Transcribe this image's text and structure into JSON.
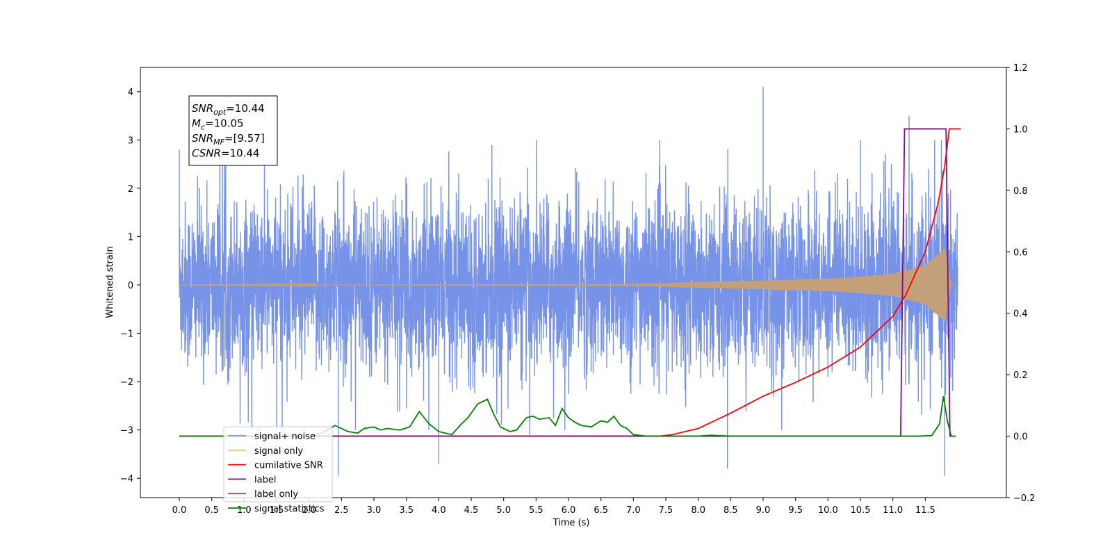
{
  "chart_data": {
    "type": "line",
    "xlabel": "Time (s)",
    "ylabel_left": "Whitened strain",
    "ylabel_right": "",
    "xlim": [
      -0.6,
      12.75
    ],
    "ylim_left": [
      -4.4,
      4.5
    ],
    "ylim_right": [
      -0.2,
      1.2
    ],
    "x_ticks": [
      "0.0",
      "0.5",
      "1.0",
      "1.5",
      "2.0",
      "2.5",
      "3.0",
      "3.5",
      "4.0",
      "4.5",
      "5.0",
      "5.5",
      "6.0",
      "6.5",
      "7.0",
      "7.5",
      "8.0",
      "8.5",
      "9.0",
      "9.5",
      "10.0",
      "10.5",
      "11.0",
      "11.5"
    ],
    "y_ticks_left": [
      "4",
      "3",
      "2",
      "1",
      "0",
      "−1",
      "−2",
      "−3",
      "−4"
    ],
    "y_ticks_right": [
      "1.2",
      "1.0",
      "0.8",
      "0.6",
      "0.4",
      "0.2",
      "0.0",
      "−0.2"
    ],
    "grid": false,
    "legend_position": "lower-left",
    "annotation": {
      "lines": [
        {
          "sym": "SNR",
          "sub": "opt",
          "val": "=10.44"
        },
        {
          "sym": "M",
          "sub": "c",
          "val": "=10.05"
        },
        {
          "sym": "SNR",
          "sub": "MF",
          "val": "=[9.57]"
        },
        {
          "sym": "CSNR",
          "sub": "",
          "val": "=10.44"
        }
      ]
    },
    "series": [
      {
        "name": "signal+ noise",
        "axis": "left",
        "color": "#7793e8",
        "kind": "noise",
        "x_range": [
          0.0,
          12.0
        ],
        "typical_range": [
          -2.2,
          2.4
        ],
        "spikes": [
          [
            0.0,
            2.8
          ],
          [
            9.0,
            4.1
          ],
          [
            11.25,
            3.5
          ],
          [
            10.5,
            3.0
          ],
          [
            4.0,
            -3.7
          ],
          [
            8.45,
            -3.8
          ],
          [
            11.8,
            -3.95
          ],
          [
            2.45,
            -3.95
          ],
          [
            1.5,
            -3.0
          ],
          [
            5.4,
            -3.1
          ]
        ]
      },
      {
        "name": "signal only",
        "axis": "left",
        "color": "#c4a07a",
        "kind": "chirp",
        "x": [
          0.0,
          7.0,
          8.0,
          9.0,
          10.0,
          10.5,
          11.0,
          11.5,
          11.8,
          11.9,
          12.0
        ],
        "envelope": [
          0.0,
          0.02,
          0.06,
          0.09,
          0.13,
          0.17,
          0.23,
          0.4,
          0.75,
          0.0,
          0.0
        ]
      },
      {
        "name": "cumilative SNR",
        "axis": "right",
        "color": "#ff0000",
        "x": [
          0.0,
          7.4,
          7.6,
          8.0,
          8.5,
          9.0,
          9.5,
          10.0,
          10.5,
          11.0,
          11.2,
          11.5,
          11.7,
          11.8,
          11.87,
          11.92,
          12.05
        ],
        "values": [
          0.0,
          0.0,
          0.005,
          0.025,
          0.075,
          0.13,
          0.175,
          0.225,
          0.29,
          0.39,
          0.46,
          0.6,
          0.76,
          0.88,
          1.0,
          1.0,
          1.0
        ]
      },
      {
        "name": "label",
        "axis": "right",
        "color": "#7b0f8a",
        "x": [
          0.0,
          11.12,
          11.18,
          11.82,
          11.88,
          11.92
        ],
        "values": [
          0.0,
          0.0,
          1.0,
          1.0,
          0.0,
          0.0
        ]
      },
      {
        "name": "label only",
        "axis": "right",
        "color": "#8c564b",
        "hidden_in_plot": true,
        "x": [
          0.0,
          11.92
        ],
        "values": [
          0.0,
          0.0
        ]
      },
      {
        "name": "signal statistics",
        "axis": "right",
        "color": "#008000",
        "x": [
          0.0,
          2.0,
          2.2,
          2.4,
          2.5,
          2.6,
          2.75,
          2.85,
          3.0,
          3.1,
          3.2,
          3.4,
          3.55,
          3.7,
          3.85,
          4.0,
          4.2,
          4.35,
          4.45,
          4.6,
          4.75,
          4.85,
          4.95,
          5.1,
          5.2,
          5.35,
          5.45,
          5.55,
          5.7,
          5.8,
          5.9,
          6.0,
          6.1,
          6.2,
          6.35,
          6.5,
          6.6,
          6.7,
          6.8,
          6.9,
          7.0,
          7.2,
          7.5,
          8.0,
          8.2,
          8.5,
          11.4,
          11.6,
          11.72,
          11.78,
          11.84,
          11.9,
          11.97
        ],
        "values": [
          0.0,
          0.0,
          0.01,
          0.035,
          0.025,
          0.015,
          0.01,
          0.025,
          0.03,
          0.02,
          0.025,
          0.02,
          0.03,
          0.08,
          0.04,
          0.015,
          0.005,
          0.04,
          0.06,
          0.105,
          0.12,
          0.07,
          0.03,
          0.015,
          0.02,
          0.06,
          0.065,
          0.055,
          0.06,
          0.035,
          0.09,
          0.06,
          0.045,
          0.035,
          0.03,
          0.05,
          0.045,
          0.065,
          0.035,
          0.025,
          0.005,
          0.0,
          0.0,
          0.0,
          0.003,
          0.0,
          0.0,
          0.002,
          0.04,
          0.13,
          0.05,
          0.0,
          0.0
        ]
      }
    ]
  }
}
